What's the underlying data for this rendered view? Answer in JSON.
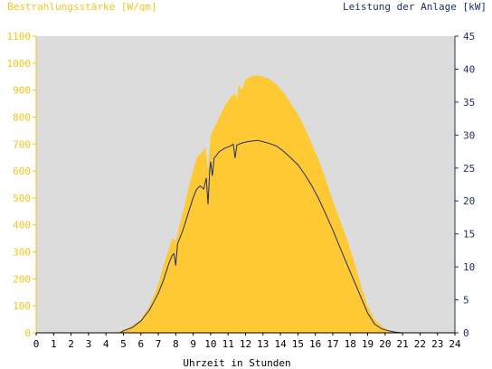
{
  "chart_data": {
    "type": "area",
    "left_axis_title": "Bestrahlungsstärke [W/qm]",
    "right_axis_title": "Leistung der Anlage [kW]",
    "xlabel": "Uhrzeit in Stunden",
    "xlim": [
      0,
      24
    ],
    "ylim_left": [
      0,
      1100
    ],
    "ylim_right": [
      0,
      45
    ],
    "x_ticks": [
      "0",
      "1",
      "2",
      "3",
      "4",
      "5",
      "6",
      "7",
      "8",
      "9",
      "10",
      "11",
      "12",
      "13",
      "14",
      "15",
      "16",
      "17",
      "18",
      "19",
      "20",
      "21",
      "22",
      "23",
      "24"
    ],
    "y_ticks_left": [
      "0",
      "100",
      "200",
      "300",
      "400",
      "500",
      "600",
      "700",
      "800",
      "900",
      "1000",
      "1100"
    ],
    "y_ticks_right": [
      "0",
      "5",
      "10",
      "15",
      "20",
      "25",
      "30",
      "35",
      "40",
      "45"
    ],
    "grid": false,
    "colors": {
      "irradiance_fill": "#ffc933",
      "power_line": "#1f2f6a",
      "plot_background": "#dcdcdc",
      "left_axis": "#f5c518",
      "right_axis": "#1f2f6a"
    },
    "series": [
      {
        "axis": "left",
        "kind": "area",
        "points": [
          [
            0,
            0
          ],
          [
            4.5,
            0
          ],
          [
            4.8,
            5
          ],
          [
            5.0,
            10
          ],
          [
            5.5,
            25
          ],
          [
            6.0,
            50
          ],
          [
            6.5,
            100
          ],
          [
            7.0,
            180
          ],
          [
            7.3,
            250
          ],
          [
            7.6,
            310
          ],
          [
            7.8,
            350
          ],
          [
            8.0,
            340
          ],
          [
            8.3,
            420
          ],
          [
            8.6,
            500
          ],
          [
            8.9,
            580
          ],
          [
            9.2,
            650
          ],
          [
            9.5,
            670
          ],
          [
            9.7,
            690
          ],
          [
            9.85,
            600
          ],
          [
            10.0,
            730
          ],
          [
            10.2,
            760
          ],
          [
            10.5,
            800
          ],
          [
            10.8,
            840
          ],
          [
            11.1,
            870
          ],
          [
            11.4,
            890
          ],
          [
            11.5,
            860
          ],
          [
            11.6,
            920
          ],
          [
            11.8,
            900
          ],
          [
            12.0,
            940
          ],
          [
            12.3,
            950
          ],
          [
            12.6,
            955
          ],
          [
            13.0,
            950
          ],
          [
            13.4,
            940
          ],
          [
            13.8,
            920
          ],
          [
            14.2,
            890
          ],
          [
            14.6,
            850
          ],
          [
            15.0,
            810
          ],
          [
            15.4,
            760
          ],
          [
            15.8,
            700
          ],
          [
            16.2,
            640
          ],
          [
            16.6,
            570
          ],
          [
            17.0,
            490
          ],
          [
            17.4,
            420
          ],
          [
            17.8,
            350
          ],
          [
            18.2,
            270
          ],
          [
            18.6,
            180
          ],
          [
            19.0,
            100
          ],
          [
            19.4,
            50
          ],
          [
            19.8,
            25
          ],
          [
            20.2,
            10
          ],
          [
            20.6,
            3
          ],
          [
            21.0,
            0
          ],
          [
            24,
            0
          ]
        ]
      },
      {
        "axis": "right",
        "kind": "line",
        "points": [
          [
            0,
            0
          ],
          [
            4.8,
            0
          ],
          [
            5.0,
            0.3
          ],
          [
            5.5,
            0.8
          ],
          [
            6.0,
            1.8
          ],
          [
            6.5,
            3.5
          ],
          [
            7.0,
            6.0
          ],
          [
            7.3,
            8.0
          ],
          [
            7.6,
            10.5
          ],
          [
            7.8,
            11.8
          ],
          [
            7.9,
            12.0
          ],
          [
            8.0,
            10.2
          ],
          [
            8.1,
            13.5
          ],
          [
            8.4,
            15.5
          ],
          [
            8.7,
            18.0
          ],
          [
            9.0,
            20.5
          ],
          [
            9.2,
            21.8
          ],
          [
            9.4,
            22.3
          ],
          [
            9.6,
            21.8
          ],
          [
            9.75,
            23.5
          ],
          [
            9.85,
            19.5
          ],
          [
            9.95,
            24.8
          ],
          [
            10.0,
            26.0
          ],
          [
            10.1,
            23.8
          ],
          [
            10.2,
            26.5
          ],
          [
            10.5,
            27.5
          ],
          [
            10.8,
            28.0
          ],
          [
            11.1,
            28.3
          ],
          [
            11.3,
            28.6
          ],
          [
            11.4,
            26.5
          ],
          [
            11.5,
            28.5
          ],
          [
            11.8,
            28.8
          ],
          [
            12.1,
            29.0
          ],
          [
            12.4,
            29.1
          ],
          [
            12.7,
            29.2
          ],
          [
            13.0,
            29.0
          ],
          [
            13.4,
            28.7
          ],
          [
            13.8,
            28.3
          ],
          [
            14.2,
            27.5
          ],
          [
            14.6,
            26.5
          ],
          [
            15.0,
            25.5
          ],
          [
            15.4,
            24.0
          ],
          [
            15.8,
            22.3
          ],
          [
            16.2,
            20.3
          ],
          [
            16.6,
            18.0
          ],
          [
            17.0,
            15.6
          ],
          [
            17.4,
            13.0
          ],
          [
            17.8,
            10.5
          ],
          [
            18.2,
            8.0
          ],
          [
            18.6,
            5.5
          ],
          [
            19.0,
            3.0
          ],
          [
            19.4,
            1.3
          ],
          [
            19.8,
            0.6
          ],
          [
            20.2,
            0.3
          ],
          [
            20.6,
            0.1
          ],
          [
            21.0,
            0
          ],
          [
            24,
            0
          ]
        ]
      }
    ]
  }
}
